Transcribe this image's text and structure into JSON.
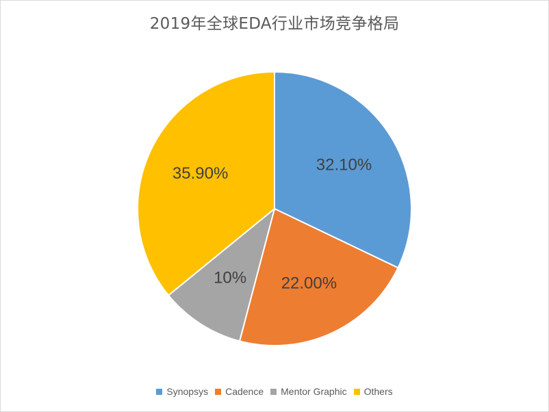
{
  "chart_data": {
    "type": "pie",
    "title": "2019年全球EDA行业市场竞争格局",
    "slices": [
      {
        "label": "Synopsys",
        "value": 32.1,
        "display": "32.10%",
        "color": "#5b9bd5"
      },
      {
        "label": "Cadence",
        "value": 22.0,
        "display": "22.00%",
        "color": "#ed7d31"
      },
      {
        "label": "Mentor Graphic",
        "value": 10.0,
        "display": "10%",
        "color": "#a5a5a5"
      },
      {
        "label": "Others",
        "value": 35.9,
        "display": "35.90%",
        "color": "#ffc000"
      }
    ],
    "legend_position": "bottom",
    "label_color": "#404040"
  }
}
